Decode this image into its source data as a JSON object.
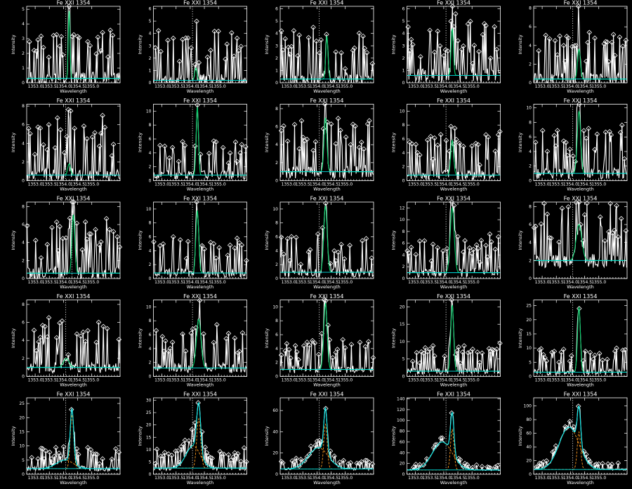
{
  "figure": {
    "background": "#000000",
    "foreground": "#ffffff"
  },
  "chart_data": [
    {
      "panel": 1,
      "type": "line",
      "title": "Fe XXI 1354",
      "xlabel": "Wavelength",
      "ylabel": "Intensity",
      "xlim": [
        1352.7,
        1356.0
      ],
      "ylim": [
        0,
        5.2
      ],
      "xticks": [
        1353.0,
        1353.5,
        1354.0,
        1354.5,
        1355.0
      ],
      "yticks": [
        0,
        1,
        2,
        3,
        4,
        5
      ],
      "ref_line": 1354.08,
      "noise": 1.1,
      "peak": {
        "center": 1354.2,
        "amp": 4.6,
        "width": 0.03
      },
      "background": 0.3,
      "fit_color": "#00cc66"
    },
    {
      "panel": 2,
      "type": "line",
      "title": "Fe XXI 1354",
      "xlabel": "Wavelength",
      "ylabel": "Intensity",
      "xlim": [
        1352.7,
        1356.0
      ],
      "ylim": [
        0,
        6.2
      ],
      "xticks": [
        1353.0,
        1353.5,
        1354.0,
        1354.5,
        1355.0
      ],
      "yticks": [
        0,
        1,
        2,
        3,
        4,
        5,
        6
      ],
      "ref_line": 1354.08,
      "noise": 1.3,
      "peak": {
        "center": 1354.2,
        "amp": 1.0,
        "width": 0.04
      },
      "background": 0.2,
      "fit_color": "#00cc66"
    },
    {
      "panel": 3,
      "type": "line",
      "title": "Fe XXI 1354",
      "xlabel": "Wavelength",
      "ylabel": "Intensity",
      "xlim": [
        1352.7,
        1356.0
      ],
      "ylim": [
        0,
        6.2
      ],
      "xticks": [
        1353.0,
        1353.5,
        1354.0,
        1354.5,
        1355.0
      ],
      "yticks": [
        0,
        1,
        2,
        3,
        4,
        5,
        6
      ],
      "ref_line": 1354.08,
      "noise": 1.2,
      "peak": {
        "center": 1354.35,
        "amp": 3.5,
        "width": 0.04
      },
      "background": 0.3,
      "fit_color": "#00cc66"
    },
    {
      "panel": 4,
      "type": "line",
      "title": "Fe XXI 1354",
      "xlabel": "Wavelength",
      "ylabel": "Intensity",
      "xlim": [
        1352.7,
        1356.0
      ],
      "ylim": [
        0,
        6.2
      ],
      "xticks": [
        1353.0,
        1353.5,
        1354.0,
        1354.5,
        1355.0
      ],
      "yticks": [
        0,
        1,
        2,
        3,
        4,
        5,
        6
      ],
      "ref_line": 1354.08,
      "noise": 1.4,
      "peak": {
        "center": 1354.3,
        "amp": 3.8,
        "width": 0.04
      },
      "background": 0.6,
      "fit_color": "#00cc66"
    },
    {
      "panel": 5,
      "type": "line",
      "title": "Fe XXI 1354",
      "xlabel": "Wavelength",
      "ylabel": "Intensity",
      "xlim": [
        1352.7,
        1356.0
      ],
      "ylim": [
        0,
        8.2
      ],
      "xticks": [
        1353.0,
        1353.5,
        1354.0,
        1354.5,
        1355.0
      ],
      "yticks": [
        0,
        2,
        4,
        6,
        8
      ],
      "ref_line": 1354.08,
      "noise": 1.6,
      "peak": {
        "center": 1354.3,
        "amp": 3.2,
        "width": 0.05
      },
      "background": 0.4,
      "fit_color": "#00cc66"
    },
    {
      "panel": 6,
      "type": "line",
      "title": "Fe XXI 1354",
      "xlabel": "Wavelength",
      "ylabel": "Intensity",
      "xlim": [
        1352.7,
        1356.0
      ],
      "ylim": [
        0,
        8.2
      ],
      "xticks": [
        1353.0,
        1353.5,
        1354.0,
        1354.5,
        1355.0
      ],
      "yticks": [
        0,
        2,
        4,
        6,
        8
      ],
      "ref_line": 1354.08,
      "noise": 1.8,
      "peak": {
        "center": 1354.2,
        "amp": 1.2,
        "width": 0.05
      },
      "background": 0.6,
      "fit_color": "#00cc66"
    },
    {
      "panel": 7,
      "type": "line",
      "title": "Fe XXI 1354",
      "xlabel": "Wavelength",
      "ylabel": "Intensity",
      "xlim": [
        1352.7,
        1356.0
      ],
      "ylim": [
        0,
        11
      ],
      "xticks": [
        1353.0,
        1353.5,
        1354.0,
        1354.5,
        1355.0
      ],
      "yticks": [
        0,
        2,
        4,
        6,
        8,
        10
      ],
      "ref_line": 1354.08,
      "noise": 1.6,
      "peak": {
        "center": 1354.25,
        "amp": 9.8,
        "width": 0.04
      },
      "background": 0.8,
      "fit_color": "#00cc66"
    },
    {
      "panel": 8,
      "type": "line",
      "title": "Fe XXI 1354",
      "xlabel": "Wavelength",
      "ylabel": "Intensity",
      "xlim": [
        1352.7,
        1356.0
      ],
      "ylim": [
        0,
        8.5
      ],
      "xticks": [
        1353.0,
        1353.5,
        1354.0,
        1354.5,
        1355.0
      ],
      "yticks": [
        0,
        2,
        4,
        6,
        8
      ],
      "ref_line": 1354.08,
      "noise": 1.9,
      "peak": {
        "center": 1354.3,
        "amp": 6.0,
        "width": 0.05
      },
      "background": 1.0,
      "fit_color": "#00cc66"
    },
    {
      "panel": 9,
      "type": "line",
      "title": "Fe XXI 1354",
      "xlabel": "Wavelength",
      "ylabel": "Intensity",
      "xlim": [
        1352.7,
        1356.0
      ],
      "ylim": [
        0,
        11
      ],
      "xticks": [
        1353.0,
        1353.5,
        1354.0,
        1354.5,
        1355.0
      ],
      "yticks": [
        0,
        2,
        4,
        6,
        8,
        10
      ],
      "ref_line": 1354.08,
      "noise": 1.8,
      "peak": {
        "center": 1354.3,
        "amp": 5.0,
        "width": 0.05
      },
      "background": 0.8,
      "fit_color": "#00cc66"
    },
    {
      "panel": 10,
      "type": "line",
      "title": "Fe XXI 1354",
      "xlabel": "Wavelength",
      "ylabel": "Intensity",
      "xlim": [
        1352.7,
        1356.0
      ],
      "ylim": [
        0,
        10.5
      ],
      "xticks": [
        1353.0,
        1353.5,
        1354.0,
        1354.5,
        1355.0
      ],
      "yticks": [
        0,
        2,
        4,
        6,
        8,
        10
      ],
      "ref_line": 1354.08,
      "noise": 2.0,
      "peak": {
        "center": 1354.3,
        "amp": 8.5,
        "width": 0.06
      },
      "background": 1.0,
      "fit_color": "#00cc66"
    },
    {
      "panel": 11,
      "type": "line",
      "title": "Fe XXI 1354",
      "xlabel": "Wavelength",
      "ylabel": "Intensity",
      "xlim": [
        1352.7,
        1356.0
      ],
      "ylim": [
        0,
        8.5
      ],
      "xticks": [
        1353.0,
        1353.5,
        1354.0,
        1354.5,
        1355.0
      ],
      "yticks": [
        0,
        2,
        4,
        6,
        8
      ],
      "ref_line": 1354.3,
      "noise": 1.8,
      "peak": {
        "center": 1354.35,
        "amp": 6.5,
        "width": 0.05
      },
      "background": 0.6,
      "fit_color": "#00cc66"
    },
    {
      "panel": 12,
      "type": "line",
      "title": "Fe XXI 1354",
      "xlabel": "Wavelength",
      "ylabel": "Intensity",
      "xlim": [
        1352.7,
        1356.0
      ],
      "ylim": [
        0,
        11
      ],
      "xticks": [
        1353.0,
        1353.5,
        1354.0,
        1354.5,
        1355.0
      ],
      "yticks": [
        0,
        2,
        4,
        6,
        8,
        10
      ],
      "ref_line": 1354.08,
      "noise": 1.6,
      "peak": {
        "center": 1354.25,
        "amp": 9.0,
        "width": 0.05
      },
      "background": 0.8,
      "fit_color": "#00cc66"
    },
    {
      "panel": 13,
      "type": "line",
      "title": "Fe XXI 1354",
      "xlabel": "Wavelength",
      "ylabel": "Intensity",
      "xlim": [
        1352.7,
        1356.0
      ],
      "ylim": [
        0,
        11
      ],
      "xticks": [
        1353.0,
        1353.5,
        1354.0,
        1354.5,
        1355.0
      ],
      "yticks": [
        0,
        2,
        4,
        6,
        8,
        10
      ],
      "ref_line": 1354.08,
      "noise": 1.7,
      "peak": {
        "center": 1354.3,
        "amp": 9.5,
        "width": 0.06
      },
      "background": 0.9,
      "fit_color": "#00cc66"
    },
    {
      "panel": 14,
      "type": "line",
      "title": "Fe XXI 1354",
      "xlabel": "Wavelength",
      "ylabel": "Intensity",
      "xlim": [
        1352.7,
        1356.0
      ],
      "ylim": [
        0,
        13
      ],
      "xticks": [
        1353.0,
        1353.5,
        1354.0,
        1354.5,
        1355.0
      ],
      "yticks": [
        0,
        2,
        4,
        6,
        8,
        10,
        12
      ],
      "ref_line": 1354.08,
      "noise": 1.9,
      "peak": {
        "center": 1354.3,
        "amp": 11.0,
        "width": 0.07
      },
      "background": 1.0,
      "fit_color": "#00cc66"
    },
    {
      "panel": 15,
      "type": "line",
      "title": "Fe XXI 1354",
      "xlabel": "Wavelength",
      "ylabel": "Intensity",
      "xlim": [
        1352.7,
        1356.0
      ],
      "ylim": [
        0,
        8.5
      ],
      "xticks": [
        1353.0,
        1353.5,
        1354.0,
        1354.5,
        1355.0
      ],
      "yticks": [
        0,
        2,
        4,
        6,
        8
      ],
      "ref_line": 1354.08,
      "noise": 2.0,
      "peak": {
        "center": 1354.3,
        "amp": 4.0,
        "width": 0.1
      },
      "background": 2.0,
      "fit_color": "#00cc66"
    },
    {
      "panel": 16,
      "type": "line",
      "title": "Fe XXI 1354",
      "xlabel": "Wavelength",
      "ylabel": "Intensity",
      "xlim": [
        1352.7,
        1356.0
      ],
      "ylim": [
        0,
        8.5
      ],
      "xticks": [
        1353.0,
        1353.5,
        1354.0,
        1354.5,
        1355.0
      ],
      "yticks": [
        0,
        2,
        4,
        6,
        8
      ],
      "ref_line": 1354.08,
      "noise": 1.6,
      "peak": {
        "center": 1354.1,
        "amp": 1.0,
        "width": 0.1
      },
      "background": 1.0,
      "fit_color": "#00cc66"
    },
    {
      "panel": 17,
      "type": "line",
      "title": "Fe XXI 1354",
      "xlabel": "Wavelength",
      "ylabel": "Intensity",
      "xlim": [
        1352.7,
        1356.0
      ],
      "ylim": [
        0,
        11
      ],
      "xticks": [
        1353.0,
        1353.5,
        1354.0,
        1354.5,
        1355.0
      ],
      "yticks": [
        0,
        2,
        4,
        6,
        8,
        10
      ],
      "ref_line": 1354.08,
      "noise": 1.8,
      "peak": {
        "center": 1354.3,
        "amp": 7.0,
        "width": 0.08
      },
      "background": 1.2,
      "fit_color": "#00cc66"
    },
    {
      "panel": 18,
      "type": "line",
      "title": "Fe XXI 1354",
      "xlabel": "Wavelength",
      "ylabel": "Intensity",
      "xlim": [
        1352.7,
        1356.0
      ],
      "ylim": [
        0,
        11
      ],
      "xticks": [
        1353.0,
        1353.5,
        1354.0,
        1354.5,
        1355.0
      ],
      "yticks": [
        0,
        2,
        4,
        6,
        8,
        10
      ],
      "ref_line": 1354.08,
      "noise": 1.4,
      "peak": {
        "center": 1354.3,
        "amp": 9.5,
        "width": 0.06
      },
      "background": 1.0,
      "fit_color": "#00cc66"
    },
    {
      "panel": 19,
      "type": "line",
      "title": "Fe XXI 1354",
      "xlabel": "Wavelength",
      "ylabel": "Intensity",
      "xlim": [
        1352.7,
        1356.0
      ],
      "ylim": [
        0,
        22
      ],
      "xticks": [
        1353.0,
        1353.5,
        1354.0,
        1354.5,
        1355.0
      ],
      "yticks": [
        0,
        5,
        10,
        15,
        20
      ],
      "ref_line": 1354.08,
      "noise": 2.4,
      "peak": {
        "center": 1354.3,
        "amp": 19.0,
        "width": 0.05
      },
      "background": 1.5,
      "fit_color": "#00cc66"
    },
    {
      "panel": 20,
      "type": "line",
      "title": "Fe XXI 1354",
      "xlabel": "Wavelength",
      "ylabel": "Intensity",
      "xlim": [
        1352.7,
        1356.0
      ],
      "ylim": [
        0,
        27
      ],
      "xticks": [
        1353.0,
        1353.5,
        1354.0,
        1354.5,
        1355.0
      ],
      "yticks": [
        0,
        5,
        10,
        15,
        20,
        25
      ],
      "ref_line": 1354.08,
      "noise": 2.6,
      "peak": {
        "center": 1354.3,
        "amp": 23.0,
        "width": 0.05
      },
      "background": 1.5,
      "fit_color": "#00cc66"
    },
    {
      "panel": 21,
      "type": "line",
      "title": "Fe XXI 1354",
      "xlabel": "Wavelength",
      "ylabel": "Intensity",
      "xlim": [
        1352.7,
        1356.0
      ],
      "ylim": [
        0,
        27
      ],
      "xticks": [
        1353.0,
        1353.5,
        1354.0,
        1354.5,
        1355.0
      ],
      "yticks": [
        0,
        5,
        10,
        15,
        20,
        25
      ],
      "ref_line": 1354.08,
      "noise": 2.2,
      "peak": {
        "center": 1354.3,
        "amp": 19.0,
        "width": 0.06
      },
      "background": 2.0,
      "broad": {
        "center": 1354.05,
        "amp": 3.0,
        "width": 0.3
      },
      "fit_color": "#00e5e5"
    },
    {
      "panel": 22,
      "type": "line",
      "title": "Fe XXI 1354",
      "xlabel": "Wavelength",
      "ylabel": "Intensity",
      "xlim": [
        1352.7,
        1356.0
      ],
      "ylim": [
        0,
        31
      ],
      "xticks": [
        1353.0,
        1353.5,
        1354.0,
        1354.5,
        1355.0
      ],
      "yticks": [
        0,
        5,
        10,
        15,
        20,
        25,
        30
      ],
      "ref_line": 1354.08,
      "noise": 2.3,
      "peak": {
        "center": 1354.3,
        "amp": 20.0,
        "width": 0.07
      },
      "background": 2.5,
      "broad": {
        "center": 1354.1,
        "amp": 9.0,
        "width": 0.25
      },
      "fit_color": "#00e5e5"
    },
    {
      "panel": 23,
      "type": "line",
      "title": "Fe XXI 1354",
      "xlabel": "Wavelength",
      "ylabel": "Intensity",
      "xlim": [
        1352.7,
        1356.0
      ],
      "ylim": [
        0,
        72
      ],
      "xticks": [
        1353.0,
        1353.5,
        1354.0,
        1354.5,
        1355.0
      ],
      "yticks": [
        0,
        20,
        40,
        60
      ],
      "ref_line": 1354.08,
      "noise": 2.5,
      "peak": {
        "center": 1354.3,
        "amp": 42.0,
        "width": 0.06
      },
      "background": 5.0,
      "broad": {
        "center": 1354.05,
        "amp": 20.0,
        "width": 0.35
      },
      "fit_color": "#00e5e5"
    },
    {
      "panel": 24,
      "type": "line",
      "title": "Fe XXI 1354",
      "xlabel": "Wavelength",
      "ylabel": "Intensity",
      "xlim": [
        1352.7,
        1356.0
      ],
      "ylim": [
        0,
        142
      ],
      "xticks": [
        1353.0,
        1353.5,
        1354.0,
        1354.5,
        1355.0
      ],
      "yticks": [
        0,
        20,
        40,
        60,
        80,
        100,
        120,
        140
      ],
      "ref_line": 1354.08,
      "noise": 3.0,
      "peak": {
        "center": 1354.3,
        "amp": 75.0,
        "width": 0.06
      },
      "background": 8.0,
      "broad": {
        "center": 1353.95,
        "amp": 52.0,
        "width": 0.35
      },
      "fit_color": "#00e5e5"
    },
    {
      "panel": 25,
      "type": "line",
      "title": "Fe XXI 1354",
      "xlabel": "Wavelength",
      "ylabel": "Intensity",
      "xlim": [
        1352.7,
        1356.0
      ],
      "ylim": [
        0,
        112
      ],
      "xticks": [
        1353.0,
        1353.5,
        1354.0,
        1354.5,
        1355.0
      ],
      "yticks": [
        0,
        20,
        40,
        60,
        80,
        100
      ],
      "ref_line": 1354.08,
      "noise": 3.0,
      "peak": {
        "center": 1354.3,
        "amp": 55.0,
        "width": 0.06
      },
      "background": 7.0,
      "broad": {
        "center": 1353.95,
        "amp": 62.0,
        "width": 0.35
      },
      "fit_color": "#00e5e5"
    }
  ]
}
